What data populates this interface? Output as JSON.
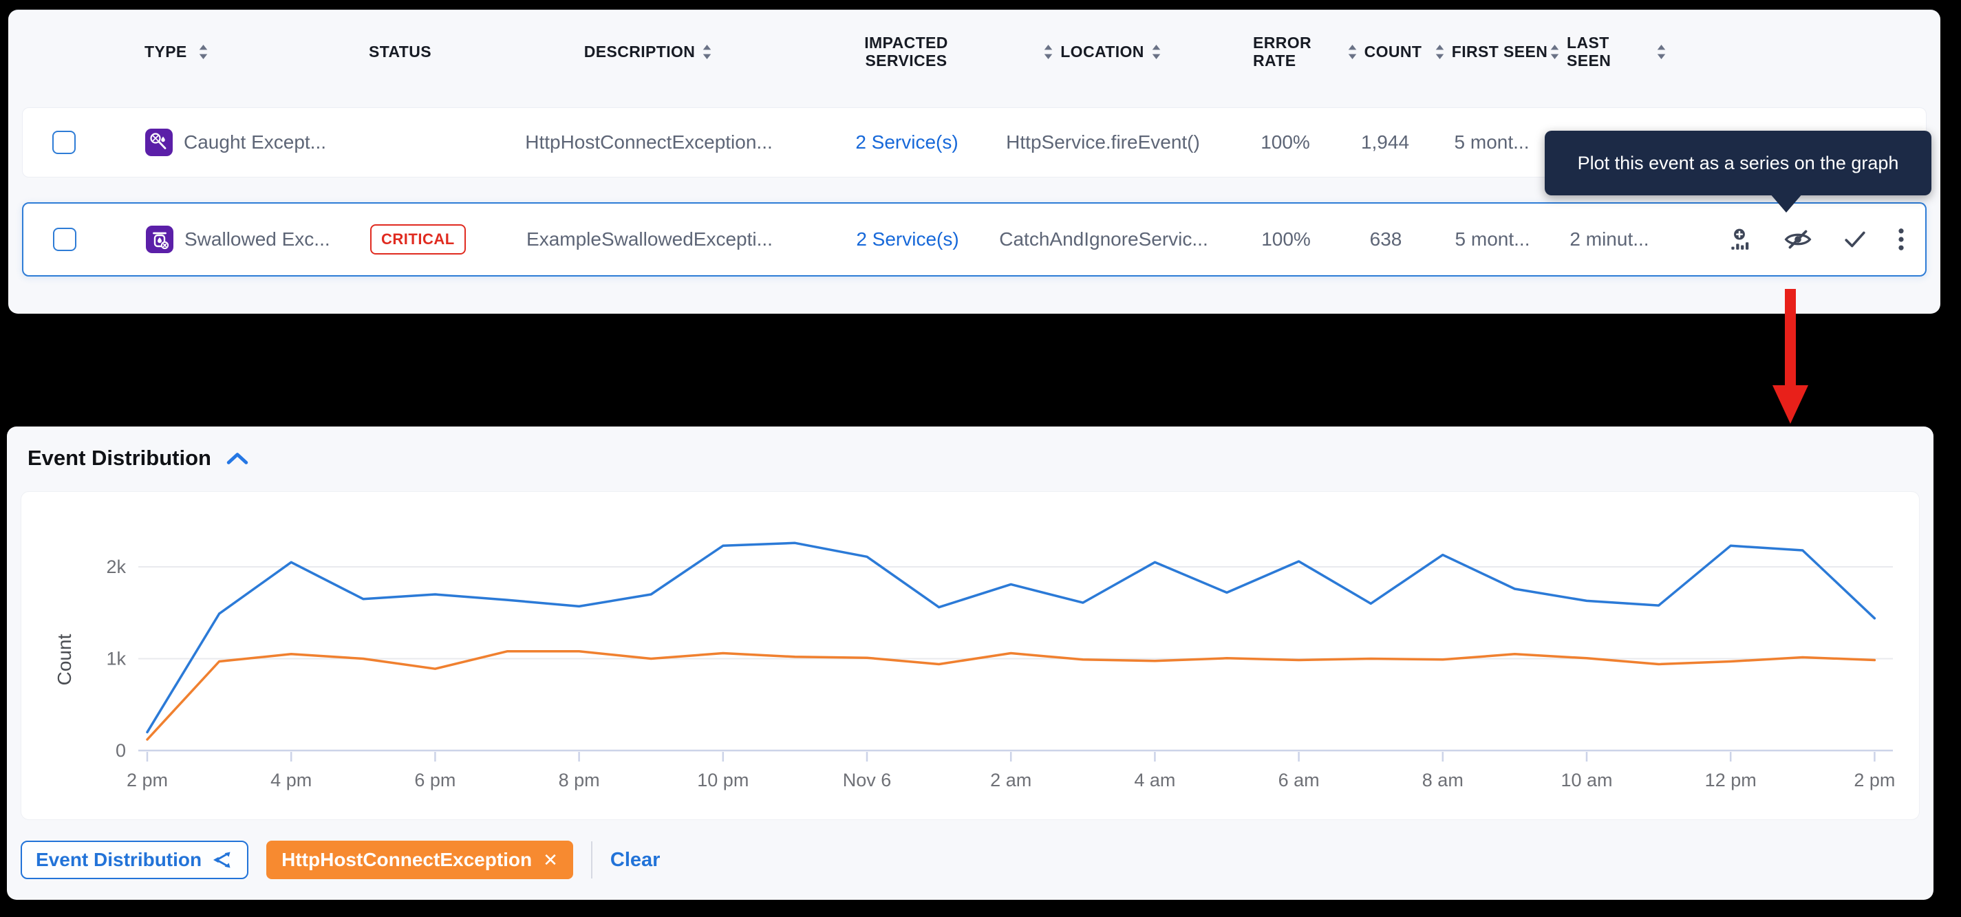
{
  "table": {
    "columns": [
      "TYPE",
      "STATUS",
      "DESCRIPTION",
      "IMPACTED SERVICES",
      "LOCATION",
      "ERROR RATE",
      "COUNT",
      "FIRST SEEN",
      "LAST SEEN"
    ],
    "rows": [
      {
        "type": "Caught Except...",
        "description": "HttpHostConnectException...",
        "services": "2 Service(s)",
        "location": "HttpService.fireEvent()",
        "error_rate": "100%",
        "count": "1,944",
        "first_seen": "5 mont..."
      },
      {
        "type": "Swallowed Exc...",
        "status": "CRITICAL",
        "description": "ExampleSwallowedExcepti...",
        "services": "2 Service(s)",
        "location": "CatchAndIgnoreServic...",
        "error_rate": "100%",
        "count": "638",
        "first_seen": "5 mont...",
        "last_seen": "2 minut..."
      }
    ]
  },
  "tooltip": {
    "text": "Plot this event as a series on the graph"
  },
  "chart_panel": {
    "title": "Event Distribution"
  },
  "footer": {
    "series_button": "Event Distribution",
    "filter_chip": "HttpHostConnectException",
    "clear": "Clear"
  },
  "colors": {
    "accent_blue": "#2e7cd6",
    "type_icon_purple": "#5b1fa8",
    "critical_red": "#e02b20",
    "tooltip_bg": "#1c2a46",
    "arrow_red": "#e8201a",
    "chip_orange": "#f78a30",
    "series_blue": "#2b7ad7",
    "series_orange": "#f0802f"
  },
  "chart_data": {
    "type": "line",
    "title": "Event Distribution",
    "xlabel": "",
    "ylabel": "Count",
    "x_unit": "hour (2 pm Nov 5 through 2 pm Nov 6, hourly points)",
    "x_tick_labels": [
      "2 pm",
      "4 pm",
      "6 pm",
      "8 pm",
      "10 pm",
      "Nov 6",
      "2 am",
      "4 am",
      "6 am",
      "8 am",
      "10 am",
      "12 pm",
      "2 pm"
    ],
    "y_ticks": [
      {
        "value": 0,
        "label": "0"
      },
      {
        "value": 1000,
        "label": "1k"
      },
      {
        "value": 2000,
        "label": "2k"
      }
    ],
    "ylim": [
      0,
      2450
    ],
    "grid": "horizontal",
    "legend_position": "none",
    "series": [
      {
        "name": "Event Distribution",
        "color": "#2b7ad7",
        "values": [
          200,
          1490,
          2050,
          1650,
          1700,
          1640,
          1570,
          1700,
          2230,
          2260,
          2110,
          1560,
          1810,
          1610,
          2050,
          1720,
          2060,
          1600,
          2130,
          1760,
          1630,
          1580,
          2230,
          2180,
          1440
        ]
      },
      {
        "name": "HttpHostConnectException",
        "color": "#f0802f",
        "values": [
          120,
          970,
          1050,
          1000,
          890,
          1080,
          1080,
          1000,
          1060,
          1020,
          1010,
          940,
          1060,
          990,
          975,
          1005,
          985,
          1000,
          990,
          1050,
          1005,
          940,
          970,
          1015,
          985
        ]
      }
    ]
  }
}
